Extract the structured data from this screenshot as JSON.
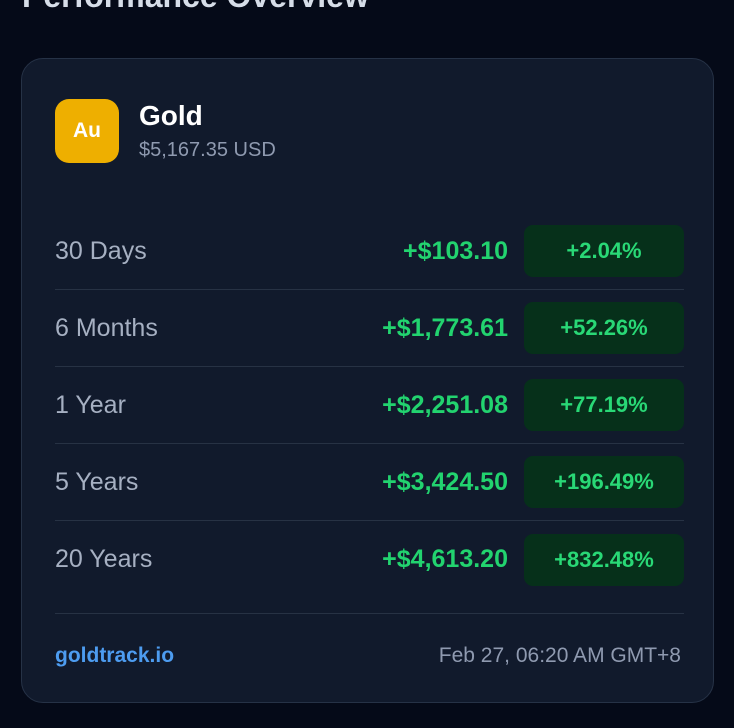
{
  "page": {
    "title": "Performance Overview"
  },
  "asset": {
    "symbol": "Au",
    "name": "Gold",
    "price": "$5,167.35 USD",
    "logo_color": "#eeaf00"
  },
  "performance": [
    {
      "period": "30 Days",
      "change": "+$103.10",
      "percent": "+2.04%"
    },
    {
      "period": "6 Months",
      "change": "+$1,773.61",
      "percent": "+52.26%"
    },
    {
      "period": "1 Year",
      "change": "+$2,251.08",
      "percent": "+77.19%"
    },
    {
      "period": "5 Years",
      "change": "+$3,424.50",
      "percent": "+196.49%"
    },
    {
      "period": "20 Years",
      "change": "+$4,613.20",
      "percent": "+832.48%"
    }
  ],
  "footer": {
    "source": "goldtrack.io",
    "timestamp": "Feb 27, 06:20 AM GMT+8"
  },
  "colors": {
    "positive": "#22d36f",
    "link": "#4d9cf0",
    "background": "#050a18",
    "card": "#111a2c"
  }
}
